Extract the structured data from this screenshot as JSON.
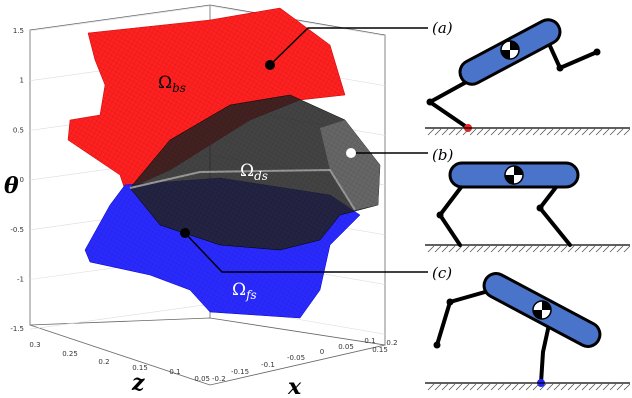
{
  "theta_axis": {
    "label": "θ",
    "ticks": [
      "1.5",
      "1",
      "0.5",
      "0",
      "-0.5",
      "-1",
      "-1.5"
    ]
  },
  "z_axis": {
    "label": "z",
    "ticks": [
      "0.3",
      "0.25",
      "0.2",
      "0.15",
      "0.1",
      "0.05"
    ]
  },
  "x_axis": {
    "label": "x",
    "ticks": [
      "-0.2",
      "-0.15",
      "-0.1",
      "-0.05",
      "0",
      "0.05",
      "0.1",
      "0.15",
      "0.2"
    ]
  },
  "regions": [
    {
      "symbol": "Ω",
      "subscript": "bs"
    },
    {
      "symbol": "Ω",
      "subscript": "ds"
    },
    {
      "symbol": "Ω",
      "subscript": "fs"
    }
  ],
  "panels": [
    "(a)",
    "(b)",
    "(c)"
  ]
}
